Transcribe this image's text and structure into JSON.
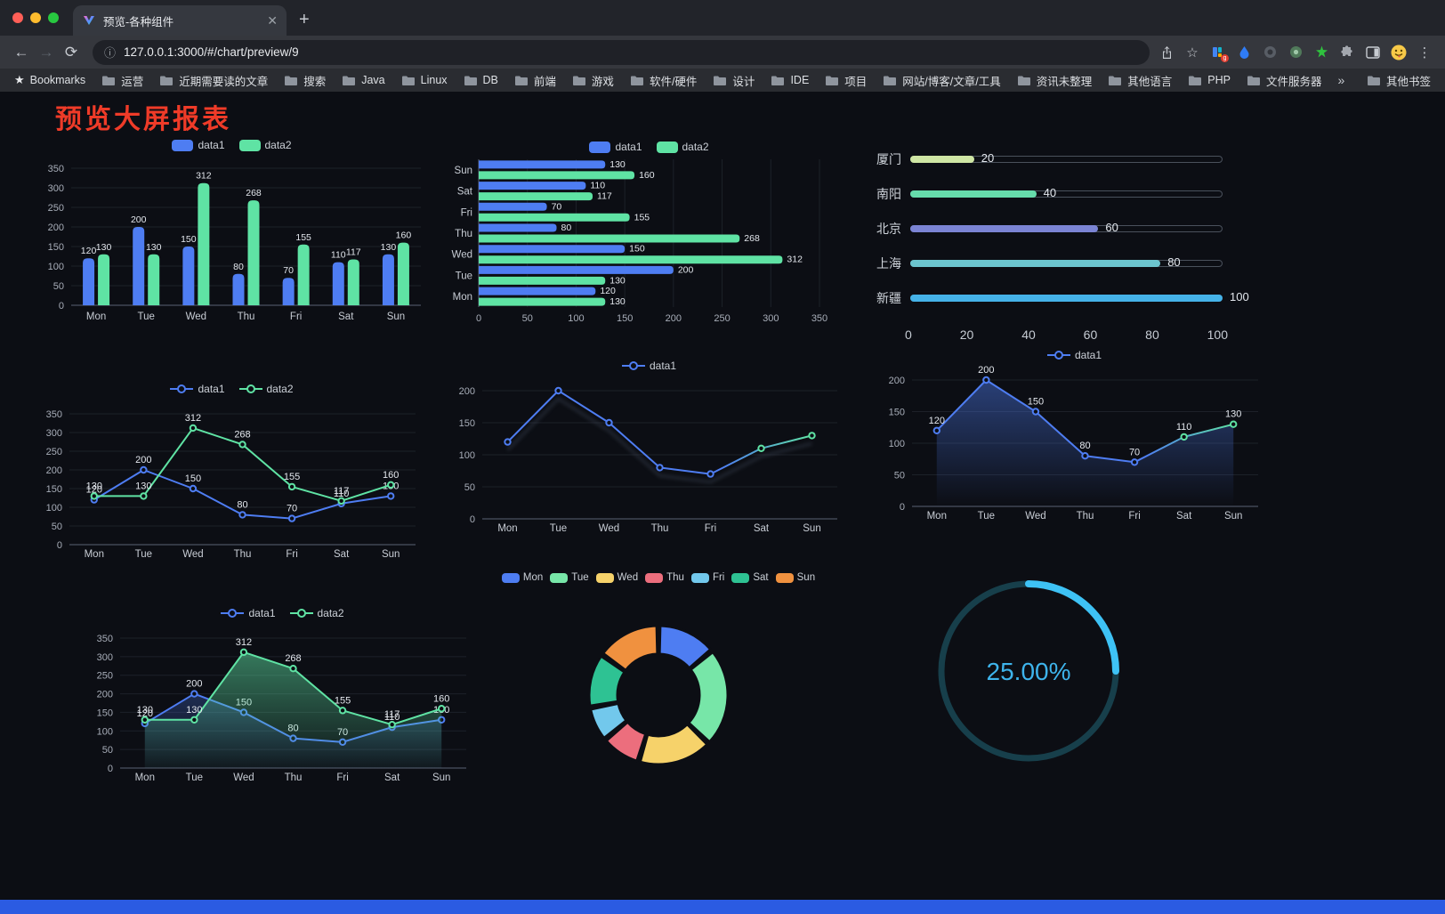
{
  "browser": {
    "tab": {
      "title": "预览-各种组件"
    },
    "address": {
      "url": "127.0.0.1:3000/#/chart/preview/9"
    },
    "bookmarks": [
      {
        "label": "Bookmarks",
        "icon": "star"
      },
      {
        "label": "运营",
        "icon": "folder"
      },
      {
        "label": "近期需要读的文章",
        "icon": "folder"
      },
      {
        "label": "搜索",
        "icon": "folder"
      },
      {
        "label": "Java",
        "icon": "folder"
      },
      {
        "label": "Linux",
        "icon": "folder"
      },
      {
        "label": "DB",
        "icon": "folder"
      },
      {
        "label": "前端",
        "icon": "folder"
      },
      {
        "label": "游戏",
        "icon": "folder"
      },
      {
        "label": "软件/硬件",
        "icon": "folder"
      },
      {
        "label": "设计",
        "icon": "folder"
      },
      {
        "label": "IDE",
        "icon": "folder"
      },
      {
        "label": "项目",
        "icon": "folder"
      },
      {
        "label": "网站/博客/文章/工具",
        "icon": "folder"
      },
      {
        "label": "资讯未整理",
        "icon": "folder"
      },
      {
        "label": "其他语言",
        "icon": "folder"
      },
      {
        "label": "PHP",
        "icon": "folder"
      },
      {
        "label": "文件服务器",
        "icon": "folder"
      },
      {
        "label": "»",
        "icon": "none"
      },
      {
        "label": "其他书签",
        "icon": "folder"
      }
    ]
  },
  "page": {
    "title": "预览大屏报表",
    "title_color": "#ef3b28"
  },
  "chart_data": [
    {
      "mount": "c1",
      "type": "bar",
      "legend": true,
      "categories": [
        "Mon",
        "Tue",
        "Wed",
        "Thu",
        "Fri",
        "Sat",
        "Sun"
      ],
      "series": [
        {
          "name": "data1",
          "color": "#4e7df2",
          "values": [
            120,
            200,
            150,
            80,
            70,
            110,
            130
          ]
        },
        {
          "name": "data2",
          "color": "#5fe3a4",
          "values": [
            130,
            130,
            312,
            268,
            155,
            117,
            160
          ]
        }
      ],
      "ylim": [
        0,
        350
      ],
      "yticks": [
        0,
        50,
        100,
        150,
        200,
        250,
        300,
        350
      ]
    },
    {
      "mount": "c2",
      "type": "bar-horizontal",
      "legend": true,
      "categories": [
        "Mon",
        "Tue",
        "Wed",
        "Thu",
        "Fri",
        "Sat",
        "Sun"
      ],
      "series": [
        {
          "name": "data1",
          "color": "#4e7df2",
          "values": [
            120,
            200,
            150,
            80,
            70,
            110,
            130
          ]
        },
        {
          "name": "data2",
          "color": "#5fe3a4",
          "values": [
            130,
            130,
            312,
            268,
            155,
            117,
            160
          ]
        }
      ],
      "xlim": [
        0,
        350
      ],
      "xticks": [
        0,
        50,
        100,
        150,
        200,
        250,
        300,
        350
      ]
    },
    {
      "mount": "c3",
      "type": "progress",
      "max": 100,
      "ticks": [
        0,
        20,
        40,
        60,
        80,
        100
      ],
      "rows": [
        {
          "label": "厦门",
          "value": 20,
          "color": "#cfe6a4"
        },
        {
          "label": "南阳",
          "value": 40,
          "color": "#66dcab"
        },
        {
          "label": "北京",
          "value": 60,
          "color": "#7b84d4"
        },
        {
          "label": "上海",
          "value": 80,
          "color": "#6cc5cf"
        },
        {
          "label": "新疆",
          "value": 100,
          "color": "#45b2e8"
        }
      ]
    },
    {
      "mount": "c4",
      "type": "line",
      "legend": true,
      "categories": [
        "Mon",
        "Tue",
        "Wed",
        "Thu",
        "Fri",
        "Sat",
        "Sun"
      ],
      "series": [
        {
          "name": "data1",
          "color": "#4e7df2",
          "values": [
            120,
            200,
            150,
            80,
            70,
            110,
            130
          ],
          "labels": true
        },
        {
          "name": "data2",
          "color": "#5fe3a4",
          "values": [
            130,
            130,
            312,
            268,
            155,
            117,
            160
          ],
          "labels": true
        }
      ],
      "ylim": [
        0,
        350
      ],
      "yticks": [
        0,
        50,
        100,
        150,
        200,
        250,
        300,
        350
      ]
    },
    {
      "mount": "c5",
      "type": "line",
      "legend": true,
      "categories": [
        "Mon",
        "Tue",
        "Wed",
        "Thu",
        "Fri",
        "Sat",
        "Sun"
      ],
      "series": [
        {
          "name": "data1",
          "color": "#4e7df2",
          "gradient": [
            "#4e7df2",
            "#5fe3a4"
          ],
          "values": [
            120,
            200,
            150,
            80,
            70,
            110,
            130
          ],
          "labels": false,
          "shadow": true
        }
      ],
      "ylim": [
        0,
        200
      ],
      "yticks": [
        0,
        50,
        100,
        150,
        200
      ]
    },
    {
      "mount": "c6",
      "type": "line",
      "legend": true,
      "categories": [
        "Mon",
        "Tue",
        "Wed",
        "Thu",
        "Fri",
        "Sat",
        "Sun"
      ],
      "series": [
        {
          "name": "data1",
          "color": "#4e7df2",
          "gradient": [
            "#4e7df2",
            "#5fe3a4"
          ],
          "values": [
            120,
            200,
            150,
            80,
            70,
            110,
            130
          ],
          "labels": true,
          "area": [
            "rgba(78,125,242,0.45)",
            "rgba(78,125,242,0)"
          ]
        }
      ],
      "ylim": [
        0,
        200
      ],
      "yticks": [
        0,
        50,
        100,
        150,
        200
      ]
    },
    {
      "mount": "c7",
      "type": "line",
      "legend": true,
      "categories": [
        "Mon",
        "Tue",
        "Wed",
        "Thu",
        "Fri",
        "Sat",
        "Sun"
      ],
      "series": [
        {
          "name": "data1",
          "color": "#4e7df2",
          "values": [
            120,
            200,
            150,
            80,
            70,
            110,
            130
          ],
          "labels": true,
          "area": [
            "rgba(78,125,242,0.28)",
            "rgba(78,125,242,0.02)"
          ]
        },
        {
          "name": "data2",
          "color": "#5fe3a4",
          "values": [
            130,
            130,
            312,
            268,
            155,
            117,
            160
          ],
          "labels": true,
          "area": [
            "rgba(95,227,164,0.50)",
            "rgba(95,227,164,0.04)"
          ]
        }
      ],
      "ylim": [
        0,
        350
      ],
      "yticks": [
        0,
        50,
        100,
        150,
        200,
        250,
        300,
        350
      ]
    },
    {
      "mount": "c8",
      "type": "donut",
      "categories": [
        "Mon",
        "Tue",
        "Wed",
        "Thu",
        "Fri",
        "Sat",
        "Sun"
      ],
      "values": [
        120,
        200,
        150,
        80,
        70,
        110,
        130
      ],
      "colors": [
        "#4e7df2",
        "#77e6a8",
        "#f6d26a",
        "#ec6e7d",
        "#72c8ec",
        "#2ec293",
        "#f0913f"
      ]
    },
    {
      "mount": "c9",
      "type": "gauge",
      "value": 25,
      "label": "25.00%",
      "color": "#3ec2f5",
      "track": "#173f4b",
      "text_color": "#3eb4ec"
    }
  ]
}
